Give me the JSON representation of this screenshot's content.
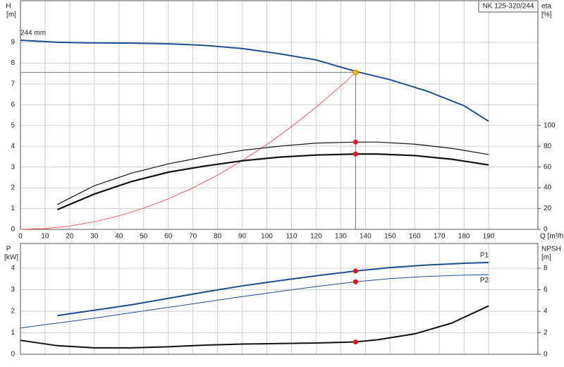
{
  "chart_data": [
    {
      "type": "line",
      "title": "NK 125-320/244",
      "ylabel": "H",
      "yunit": "[m]",
      "y2label": "eta",
      "y2unit": "[%]",
      "xlabel": "Q [m³/h]",
      "xlim": [
        0,
        210
      ],
      "xticks": [
        0,
        10,
        20,
        30,
        40,
        50,
        60,
        70,
        80,
        90,
        100,
        110,
        120,
        130,
        140,
        150,
        160,
        170,
        180,
        190
      ],
      "ylim": [
        0,
        11
      ],
      "yticks": [
        0,
        1,
        2,
        3,
        4,
        5,
        6,
        7,
        8,
        9
      ],
      "y2lim": [
        0,
        220
      ],
      "y2ticks": [
        0,
        20,
        40,
        60,
        80,
        100
      ],
      "grid": true,
      "show_xlabels": true,
      "series": [
        {
          "name": "244 mm",
          "label_pos": "start",
          "color": "#1f4e8c",
          "width": 2,
          "axis": "y",
          "x": [
            0,
            15,
            30,
            45,
            60,
            75,
            90,
            105,
            120,
            136,
            150,
            165,
            180,
            190
          ],
          "values": [
            9.1,
            9.0,
            8.97,
            8.96,
            8.93,
            8.85,
            8.7,
            8.45,
            8.15,
            7.6,
            7.2,
            6.65,
            5.95,
            5.2
          ]
        },
        {
          "color": "#ff3b3b",
          "width": 0.8,
          "axis": "y",
          "x": [
            0,
            10,
            20,
            30,
            40,
            50,
            60,
            70,
            80,
            90,
            100,
            110,
            120,
            130,
            136
          ],
          "values": [
            0,
            0.04,
            0.16,
            0.37,
            0.65,
            1.02,
            1.47,
            2.0,
            2.61,
            3.31,
            4.08,
            4.94,
            5.88,
            6.9,
            7.55
          ]
        },
        {
          "color": "#111",
          "width": 1.2,
          "axis": "y2",
          "x": [
            15,
            30,
            45,
            60,
            75,
            90,
            105,
            120,
            136,
            145,
            160,
            175,
            190
          ],
          "values": [
            24,
            42,
            54,
            63,
            70,
            76,
            80,
            83,
            84,
            84,
            82,
            78,
            72
          ]
        },
        {
          "color": "#111",
          "width": 2.2,
          "axis": "y2",
          "x": [
            15,
            30,
            45,
            60,
            75,
            90,
            105,
            120,
            136,
            145,
            160,
            175,
            190
          ],
          "values": [
            19,
            34,
            46,
            55,
            61,
            66,
            69.5,
            71.5,
            72.5,
            72.5,
            71,
            67.5,
            62
          ]
        },
        {
          "markers": true,
          "crosshair": true,
          "color": "#f5b800",
          "axis": "y",
          "x": [
            136
          ],
          "values": [
            7.55
          ]
        },
        {
          "markers": true,
          "color": "#e8141a",
          "axis": "y2",
          "x": [
            136,
            136
          ],
          "values": [
            84,
            72.5
          ]
        }
      ]
    },
    {
      "type": "line",
      "ylabel": "P",
      "yunit": "[kW]",
      "y2label": "NPSH",
      "y2unit": "[m]",
      "xlim": [
        0,
        210
      ],
      "xticks": [
        0,
        10,
        20,
        30,
        40,
        50,
        60,
        70,
        80,
        90,
        100,
        110,
        120,
        130,
        140,
        150,
        160,
        170,
        180,
        190
      ],
      "ylim": [
        0,
        5.15
      ],
      "yticks": [
        0,
        1,
        2,
        3,
        4
      ],
      "y2lim": [
        0,
        10.3
      ],
      "y2ticks": [
        0,
        2,
        4,
        6,
        8
      ],
      "grid": true,
      "show_xlabels": false,
      "series": [
        {
          "name": "P1",
          "label_pos": "end",
          "color": "#1f4e8c",
          "width": 2,
          "axis": "y",
          "x": [
            15,
            30,
            45,
            60,
            75,
            90,
            105,
            120,
            136,
            150,
            165,
            180,
            190
          ],
          "values": [
            1.8,
            2.05,
            2.3,
            2.6,
            2.9,
            3.18,
            3.42,
            3.65,
            3.87,
            4.03,
            4.15,
            4.23,
            4.27
          ]
        },
        {
          "name": "P2",
          "label_pos": "end-below",
          "color": "#1f4e8c",
          "width": 1,
          "axis": "y",
          "x": [
            0,
            15,
            30,
            45,
            60,
            75,
            90,
            105,
            120,
            136,
            150,
            165,
            180,
            190
          ],
          "values": [
            1.22,
            1.45,
            1.68,
            1.93,
            2.18,
            2.43,
            2.68,
            2.92,
            3.15,
            3.37,
            3.52,
            3.62,
            3.68,
            3.7
          ]
        },
        {
          "color": "#111",
          "width": 2,
          "axis": "y2",
          "x": [
            0,
            15,
            30,
            45,
            60,
            75,
            90,
            105,
            120,
            136,
            145,
            160,
            175,
            190
          ],
          "values": [
            1.3,
            0.8,
            0.6,
            0.6,
            0.7,
            0.85,
            0.95,
            1.0,
            1.05,
            1.15,
            1.35,
            1.9,
            2.9,
            4.5
          ]
        },
        {
          "markers": true,
          "color": "#e8141a",
          "axis": "y",
          "x": [
            136,
            136
          ],
          "values": [
            3.87,
            3.37
          ]
        },
        {
          "markers": true,
          "color": "#e8141a",
          "axis": "y2",
          "x": [
            136
          ],
          "values": [
            1.15
          ]
        }
      ]
    }
  ]
}
